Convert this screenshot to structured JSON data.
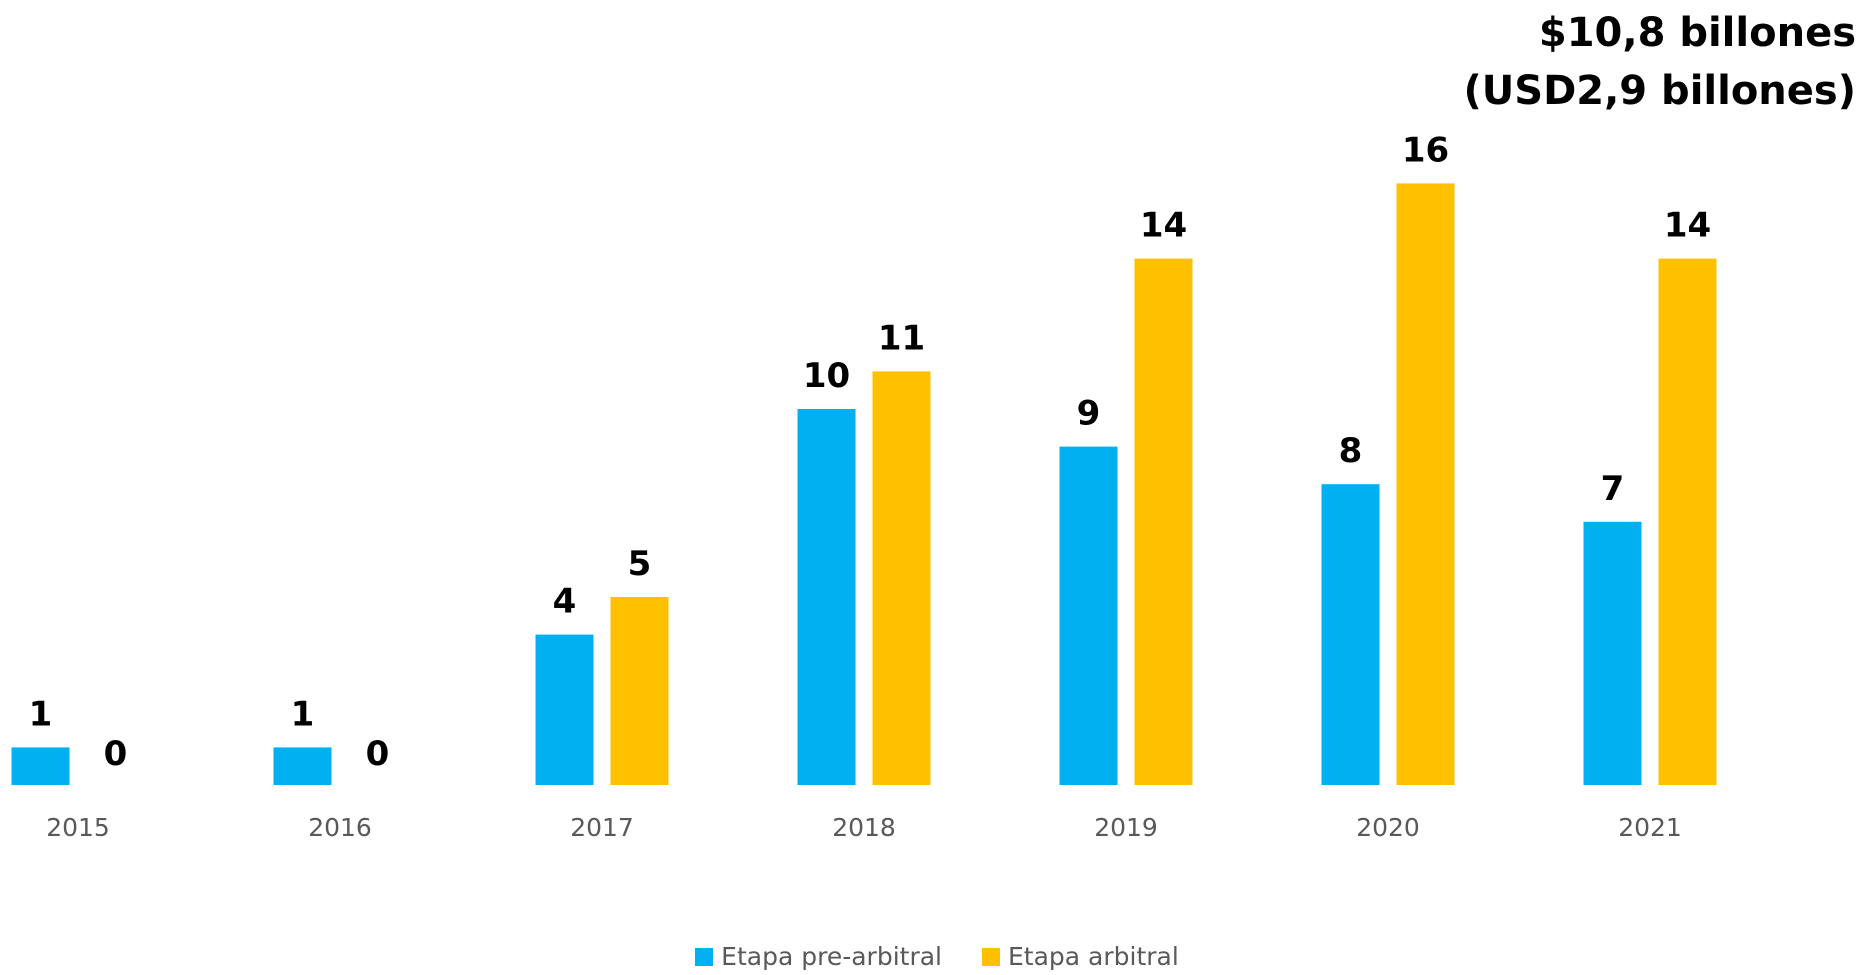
{
  "chart_data": {
    "type": "bar",
    "categories": [
      "2015",
      "2016",
      "2017",
      "2018",
      "2019",
      "2020",
      "2021"
    ],
    "series": [
      {
        "name": "Etapa pre-arbitral",
        "color": "#00B0F0",
        "values": [
          1,
          1,
          4,
          10,
          9,
          8,
          7
        ]
      },
      {
        "name": "Etapa arbitral",
        "color": "#FFC000",
        "values": [
          0,
          0,
          5,
          11,
          14,
          16,
          14
        ]
      }
    ],
    "ylim": [
      0,
      17
    ],
    "grid": false,
    "legend_position": "bottom",
    "title": "",
    "xlabel": "",
    "ylabel": ""
  },
  "annotation": {
    "line1": "$10,8 billones",
    "line2": "(USD2,9 billones)"
  }
}
